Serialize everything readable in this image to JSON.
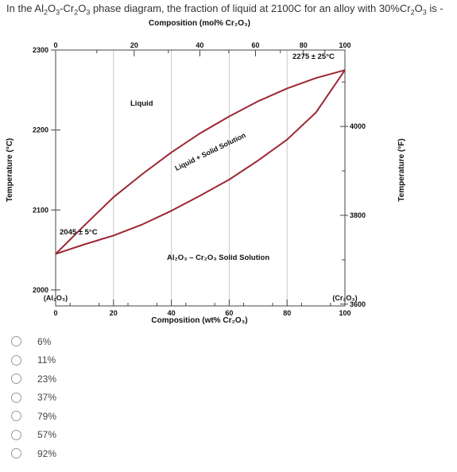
{
  "question": {
    "prefix": "In the Al",
    "s1": "2",
    "m1": "O",
    "s2": "3",
    "m2": "-Cr",
    "s3": "2",
    "m3": "O",
    "s4": "3",
    "suffix": " phase diagram, the fraction of liquid at 2100C for an alloy with 30%Cr",
    "s5": "2",
    "m5": "O",
    "s6": "3",
    "end": " is -"
  },
  "options": [
    {
      "label": "6%",
      "selected": false
    },
    {
      "label": "11%",
      "selected": false
    },
    {
      "label": "23%",
      "selected": false
    },
    {
      "label": "37%",
      "selected": false
    },
    {
      "label": "79%",
      "selected": false
    },
    {
      "label": "57%",
      "selected": false
    },
    {
      "label": "92%",
      "selected": false
    }
  ],
  "chart_data": {
    "type": "line",
    "top_axis_label": "Composition (mol% Cr₂O₃)",
    "top_ticks": [
      "0",
      "20",
      "40",
      "60",
      "80",
      "100"
    ],
    "xlabel": "Composition (wt% Cr₂O₃)",
    "x_ticks": [
      "0",
      "20",
      "40",
      "60",
      "80",
      "100"
    ],
    "x_end_labels": [
      "(Al₂O₃)",
      "(Cr₂O₃)"
    ],
    "xlim": [
      0,
      100
    ],
    "ylabel": "Temperature (°C)",
    "ylim": [
      1980,
      2300
    ],
    "y_ticks": [
      2000,
      2100,
      2200,
      2300
    ],
    "ylabel_right": "Temperature (°F)",
    "y_ticks_right": [
      3600,
      3800,
      4000
    ],
    "series": [
      {
        "name": "liquidus",
        "color": "#9b2732",
        "x": [
          0,
          10,
          20,
          30,
          40,
          50,
          60,
          70,
          80,
          90,
          100
        ],
        "y": [
          2045,
          2081,
          2116,
          2145,
          2172,
          2196,
          2217,
          2236,
          2252,
          2265,
          2275
        ]
      },
      {
        "name": "solidus",
        "color": "#9b2732",
        "x": [
          0,
          10,
          20,
          30,
          40,
          50,
          60,
          70,
          80,
          90,
          100
        ],
        "y": [
          2045,
          2057,
          2068,
          2082,
          2099,
          2118,
          2138,
          2162,
          2188,
          2222,
          2275
        ]
      }
    ],
    "annotations": [
      {
        "text": "2275 ± 25°C"
      },
      {
        "text": "Liquid"
      },
      {
        "text": "Liquid + Solid Solution"
      },
      {
        "text": "2045 ± 5°C"
      },
      {
        "text": "Al₂O₃ – Cr₂O₃ Solid Solution"
      }
    ],
    "grid": true
  }
}
